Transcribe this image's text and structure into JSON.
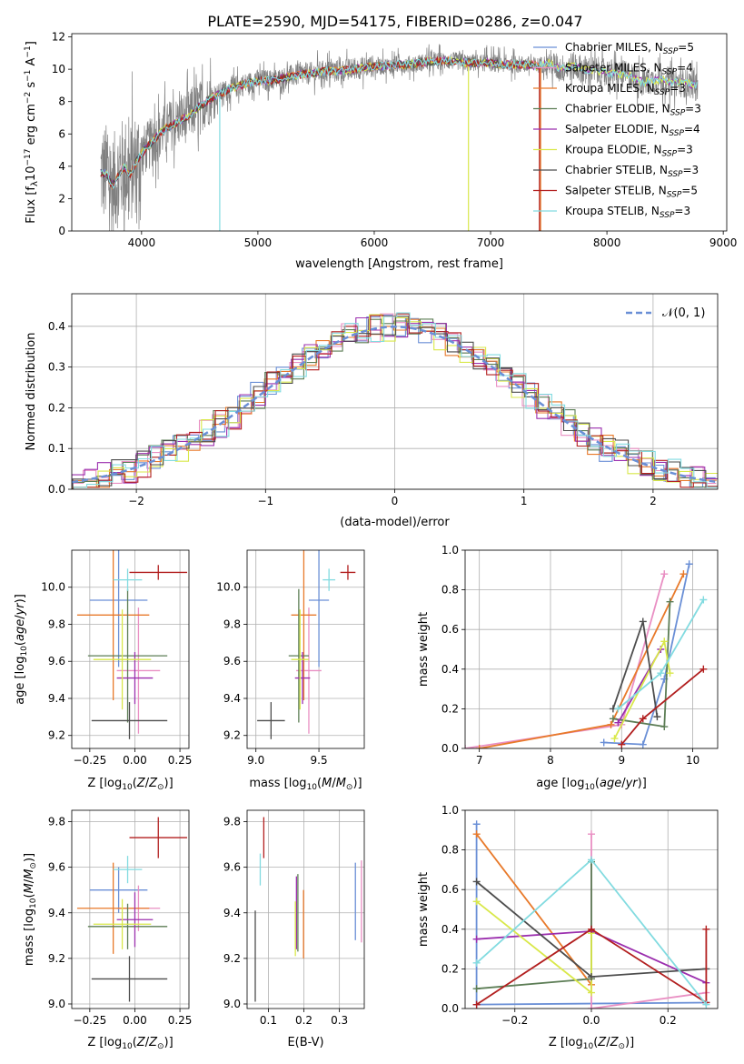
{
  "figure_title": "PLATE=2590, MJD=54175, FIBERID=0286, z=0.047",
  "colors": {
    "Chabrier MILES": "#6a8fd6",
    "Salpeter MILES": "#e98fc3",
    "Kroupa MILES": "#e8792a",
    "Chabrier ELODIE": "#5c7d55",
    "Salpeter ELODIE": "#9b2fae",
    "Kroupa ELODIE": "#d9e84a",
    "Chabrier STELIB": "#4d4d4d",
    "Salpeter STELIB": "#b21f1f",
    "Kroupa STELIB": "#82dbe0",
    "data": "#808080",
    "gaussian": "#6a8fd6"
  },
  "chart_data": [
    {
      "id": "spectrum",
      "type": "line",
      "title": "PLATE=2590, MJD=54175, FIBERID=0286, z=0.047",
      "xlabel": "wavelength [Angstrom, rest frame]",
      "ylabel": "Flux [f_λ 10^-17 erg cm^-2 s^-1 A^-1]",
      "xlim": [
        3400,
        9030
      ],
      "ylim": [
        0,
        12.2
      ],
      "xticks": [
        4000,
        5000,
        6000,
        7000,
        8000,
        9000
      ],
      "yticks": [
        0,
        2,
        4,
        6,
        8,
        10,
        12
      ],
      "grid": false,
      "legend_position": "right",
      "legend": [
        "Chabrier MILES, N_SSP=5",
        "Salpeter MILES, N_SSP=4",
        "Kroupa MILES, N_SSP=3",
        "Chabrier ELODIE, N_SSP=3",
        "Salpeter ELODIE, N_SSP=4",
        "Kroupa ELODIE, N_SSP=3",
        "Chabrier STELIB, N_SSP=3",
        "Salpeter STELIB, N_SSP=5",
        "Kroupa STELIB, N_SSP=3"
      ],
      "data_range": [
        3650,
        8780
      ],
      "model_continuum": {
        "x": [
          3650,
          3700,
          3750,
          3800,
          3850,
          3900,
          3950,
          4000,
          4100,
          4200,
          4300,
          4400,
          4500,
          4600,
          4700,
          4800,
          4900,
          5000,
          5100,
          5200,
          5300,
          5400,
          5500,
          5600,
          5700,
          5800,
          5900,
          6000,
          6100,
          6200,
          6300,
          6400,
          6500,
          6600,
          6700,
          6800,
          6900,
          7000,
          7100,
          7200,
          7300,
          7400,
          7500,
          7600,
          7700,
          7800,
          7900,
          8000,
          8100,
          8200,
          8300,
          8400,
          8500,
          8600,
          8700,
          8780
        ],
        "y": [
          3.6,
          3.5,
          2.8,
          3.4,
          4.0,
          3.5,
          4.2,
          4.8,
          5.6,
          6.3,
          6.7,
          7.1,
          7.7,
          8.2,
          8.6,
          8.9,
          9.1,
          9.3,
          9.3,
          9.4,
          9.6,
          9.7,
          9.8,
          9.9,
          9.9,
          10.0,
          10.1,
          10.2,
          10.2,
          10.3,
          10.3,
          10.4,
          10.5,
          10.5,
          10.5,
          10.4,
          10.4,
          10.4,
          10.3,
          10.3,
          10.3,
          10.2,
          10.4,
          10.0,
          10.2,
          10.0,
          9.9,
          9.8,
          9.7,
          9.6,
          9.2,
          9.3,
          9.3,
          9.2,
          9.1,
          9.0
        ]
      }
    },
    {
      "id": "residuals",
      "type": "bar",
      "xlabel": "(data-model)/error",
      "ylabel": "Normed distribution",
      "xlim": [
        -2.5,
        2.5
      ],
      "ylim": [
        0,
        0.48
      ],
      "xticks": [
        -2,
        -1,
        0,
        1,
        2
      ],
      "yticks": [
        0.0,
        0.1,
        0.2,
        0.3,
        0.4
      ],
      "grid": true,
      "legend_position": "top-right",
      "legend": [
        "𝒩(0, 1)"
      ],
      "bin_width": 0.1
    },
    {
      "id": "age_vs_Z",
      "type": "scatter",
      "xlabel": "Z [log10(Z/Z⊙)]",
      "ylabel": "age  [log10(age/yr)]",
      "xlim": [
        -0.35,
        0.3
      ],
      "ylim": [
        9.13,
        10.2
      ],
      "xticks": [
        -0.25,
        0.0,
        0.25
      ],
      "yticks": [
        9.2,
        9.4,
        9.6,
        9.8,
        10.0
      ],
      "grid": true,
      "series": [
        {
          "name": "Chabrier MILES",
          "x": -0.09,
          "xerr": 0.16,
          "y": 9.93,
          "yerr": 0.36
        },
        {
          "name": "Salpeter MILES",
          "x": 0.02,
          "xerr": 0.12,
          "y": 9.55,
          "yerr": 0.34
        },
        {
          "name": "Kroupa MILES",
          "x": -0.12,
          "xerr": 0.2,
          "y": 9.85,
          "yerr": 0.46
        },
        {
          "name": "Chabrier ELODIE",
          "x": -0.04,
          "xerr": 0.22,
          "y": 9.63,
          "yerr": 0.36
        },
        {
          "name": "Salpeter ELODIE",
          "x": 0.0,
          "xerr": 0.1,
          "y": 9.51,
          "yerr": 0.14
        },
        {
          "name": "Kroupa ELODIE",
          "x": -0.07,
          "xerr": 0.16,
          "y": 9.61,
          "yerr": 0.27
        },
        {
          "name": "Chabrier STELIB",
          "x": -0.03,
          "xerr": 0.21,
          "y": 9.28,
          "yerr": 0.1
        },
        {
          "name": "Salpeter STELIB",
          "x": 0.13,
          "xerr": 0.16,
          "y": 10.08,
          "yerr": 0.04
        },
        {
          "name": "Kroupa STELIB",
          "x": -0.04,
          "xerr": 0.08,
          "y": 10.04,
          "yerr": 0.06
        }
      ]
    },
    {
      "id": "age_vs_mass",
      "type": "scatter",
      "xlabel": "mass [log10(M/M⊙)]",
      "ylabel": "",
      "xlim": [
        8.93,
        9.86
      ],
      "ylim": [
        9.13,
        10.2
      ],
      "xticks": [
        9.0,
        9.5
      ],
      "yticks": [
        9.2,
        9.4,
        9.6,
        9.8,
        10.0
      ],
      "grid": true,
      "series": [
        {
          "name": "Chabrier MILES",
          "x": 9.5,
          "xerr": 0.08,
          "y": 9.93,
          "yerr": 0.36
        },
        {
          "name": "Salpeter MILES",
          "x": 9.42,
          "xerr": 0.1,
          "y": 9.55,
          "yerr": 0.34
        },
        {
          "name": "Kroupa MILES",
          "x": 9.38,
          "xerr": 0.1,
          "y": 9.85,
          "yerr": 0.46
        },
        {
          "name": "Chabrier ELODIE",
          "x": 9.34,
          "xerr": 0.08,
          "y": 9.63,
          "yerr": 0.36
        },
        {
          "name": "Salpeter ELODIE",
          "x": 9.37,
          "xerr": 0.06,
          "y": 9.51,
          "yerr": 0.14
        },
        {
          "name": "Kroupa ELODIE",
          "x": 9.35,
          "xerr": 0.07,
          "y": 9.61,
          "yerr": 0.27
        },
        {
          "name": "Chabrier STELIB",
          "x": 9.12,
          "xerr": 0.11,
          "y": 9.28,
          "yerr": 0.1
        },
        {
          "name": "Salpeter STELIB",
          "x": 9.73,
          "xerr": 0.06,
          "y": 10.08,
          "yerr": 0.04
        },
        {
          "name": "Kroupa STELIB",
          "x": 9.58,
          "xerr": 0.05,
          "y": 10.04,
          "yerr": 0.06
        }
      ]
    },
    {
      "id": "weight_vs_age",
      "type": "line",
      "xlabel": "age  [log10(age/yr)]",
      "ylabel": "mass weight",
      "xlim": [
        6.8,
        10.35
      ],
      "ylim": [
        0,
        1.0
      ],
      "xticks": [
        7,
        8,
        9,
        10
      ],
      "yticks": [
        0.0,
        0.2,
        0.4,
        0.6,
        0.8,
        1.0
      ],
      "grid": true,
      "series": [
        {
          "name": "Chabrier MILES",
          "x": [
            8.75,
            9.3,
            9.6,
            9.95
          ],
          "y": [
            0.03,
            0.02,
            0.35,
            0.93
          ]
        },
        {
          "name": "Salpeter MILES",
          "x": [
            6.8,
            9.0,
            9.6
          ],
          "y": [
            0.0,
            0.12,
            0.88
          ]
        },
        {
          "name": "Kroupa MILES",
          "x": [
            7.0,
            8.85,
            9.87
          ],
          "y": [
            0.0,
            0.12,
            0.88
          ]
        },
        {
          "name": "Chabrier ELODIE",
          "x": [
            8.88,
            9.6,
            9.68
          ],
          "y": [
            0.15,
            0.11,
            0.74
          ]
        },
        {
          "name": "Salpeter ELODIE",
          "x": [
            8.95,
            9.55
          ],
          "y": [
            0.13,
            0.5
          ]
        },
        {
          "name": "Kroupa ELODIE",
          "x": [
            8.9,
            9.6,
            9.68
          ],
          "y": [
            0.05,
            0.54,
            0.38
          ]
        },
        {
          "name": "Chabrier STELIB",
          "x": [
            8.88,
            9.3,
            9.5
          ],
          "y": [
            0.2,
            0.64,
            0.16
          ]
        },
        {
          "name": "Salpeter STELIB",
          "x": [
            9.0,
            9.3,
            10.15
          ],
          "y": [
            0.02,
            0.15,
            0.4
          ]
        },
        {
          "name": "Kroupa STELIB",
          "x": [
            8.95,
            9.55,
            10.15
          ],
          "y": [
            0.2,
            0.38,
            0.75
          ]
        }
      ]
    },
    {
      "id": "mass_vs_Z",
      "type": "scatter",
      "xlabel": "Z [log10(Z/Z⊙)]",
      "ylabel": "mass [log10(M/M⊙)]",
      "xlim": [
        -0.35,
        0.3
      ],
      "ylim": [
        8.98,
        9.85
      ],
      "xticks": [
        -0.25,
        0.0,
        0.25
      ],
      "yticks": [
        9.0,
        9.2,
        9.4,
        9.6,
        9.8
      ],
      "grid": true,
      "series": [
        {
          "name": "Chabrier MILES",
          "x": -0.09,
          "xerr": 0.16,
          "y": 9.5,
          "yerr": 0.1
        },
        {
          "name": "Salpeter MILES",
          "x": 0.02,
          "xerr": 0.12,
          "y": 9.42,
          "yerr": 0.1
        },
        {
          "name": "Kroupa MILES",
          "x": -0.12,
          "xerr": 0.2,
          "y": 9.42,
          "yerr": 0.2
        },
        {
          "name": "Chabrier ELODIE",
          "x": -0.04,
          "xerr": 0.22,
          "y": 9.34,
          "yerr": 0.1
        },
        {
          "name": "Salpeter ELODIE",
          "x": 0.0,
          "xerr": 0.1,
          "y": 9.37,
          "yerr": 0.12
        },
        {
          "name": "Kroupa ELODIE",
          "x": -0.07,
          "xerr": 0.16,
          "y": 9.35,
          "yerr": 0.11
        },
        {
          "name": "Chabrier STELIB",
          "x": -0.03,
          "xerr": 0.21,
          "y": 9.11,
          "yerr": 0.1
        },
        {
          "name": "Salpeter STELIB",
          "x": 0.13,
          "xerr": 0.16,
          "y": 9.73,
          "yerr": 0.09
        },
        {
          "name": "Kroupa STELIB",
          "x": -0.04,
          "xerr": 0.08,
          "y": 9.59,
          "yerr": 0.06
        }
      ]
    },
    {
      "id": "mass_vs_ebv",
      "type": "scatter",
      "xlabel": "E(B-V)",
      "ylabel": "",
      "xlim": [
        0.04,
        0.37
      ],
      "ylim": [
        8.98,
        9.85
      ],
      "xticks": [
        0.1,
        0.2,
        0.3
      ],
      "yticks": [
        9.0,
        9.2,
        9.4,
        9.6,
        9.8
      ],
      "grid": true,
      "series": [
        {
          "name": "Chabrier MILES",
          "x": 0.345,
          "y": 9.45,
          "yerr": 0.17
        },
        {
          "name": "Salpeter MILES",
          "x": 0.362,
          "y": 9.45,
          "yerr": 0.18
        },
        {
          "name": "Kroupa MILES",
          "x": 0.199,
          "y": 9.35,
          "yerr": 0.15
        },
        {
          "name": "Chabrier ELODIE",
          "x": 0.183,
          "y": 9.4,
          "yerr": 0.17
        },
        {
          "name": "Salpeter ELODIE",
          "x": 0.179,
          "y": 9.4,
          "yerr": 0.16
        },
        {
          "name": "Kroupa ELODIE",
          "x": 0.176,
          "y": 9.33,
          "yerr": 0.12
        },
        {
          "name": "Chabrier STELIB",
          "x": 0.063,
          "y": 9.21,
          "yerr": 0.2
        },
        {
          "name": "Salpeter STELIB",
          "x": 0.087,
          "y": 9.73,
          "yerr": 0.09
        },
        {
          "name": "Kroupa STELIB",
          "x": 0.077,
          "y": 9.59,
          "yerr": 0.07
        }
      ]
    },
    {
      "id": "weight_vs_Z",
      "type": "line",
      "xlabel": "Z [log10(Z/Z⊙)]",
      "ylabel": "mass weight",
      "xlim": [
        -0.33,
        0.33
      ],
      "ylim": [
        0,
        1.0
      ],
      "xticks": [
        -0.2,
        0.0,
        0.2
      ],
      "yticks": [
        0.0,
        0.2,
        0.4,
        0.6,
        0.8,
        1.0
      ],
      "grid": true,
      "series": [
        {
          "name": "Chabrier MILES",
          "x": [
            -0.3,
            -0.3,
            0.3
          ],
          "y": [
            0.93,
            0.02,
            0.03
          ]
        },
        {
          "name": "Salpeter MILES",
          "x": [
            0.0,
            0.0,
            0.3
          ],
          "y": [
            0.88,
            0.0,
            0.08
          ]
        },
        {
          "name": "Kroupa MILES",
          "x": [
            -0.3,
            0.0
          ],
          "y": [
            0.88,
            0.12
          ]
        },
        {
          "name": "Chabrier ELODIE",
          "x": [
            -0.3,
            0.0,
            0.0
          ],
          "y": [
            0.1,
            0.15,
            0.74
          ]
        },
        {
          "name": "Salpeter ELODIE",
          "x": [
            -0.3,
            0.0,
            0.3
          ],
          "y": [
            0.35,
            0.39,
            0.13
          ]
        },
        {
          "name": "Kroupa ELODIE",
          "x": [
            -0.3,
            0.0,
            0.0
          ],
          "y": [
            0.54,
            0.08,
            0.38
          ]
        },
        {
          "name": "Chabrier STELIB",
          "x": [
            -0.3,
            0.0,
            0.3
          ],
          "y": [
            0.64,
            0.16,
            0.2
          ]
        },
        {
          "name": "Salpeter STELIB",
          "x": [
            -0.3,
            0.0,
            0.3,
            0.3
          ],
          "y": [
            0.02,
            0.4,
            0.03,
            0.4
          ]
        },
        {
          "name": "Kroupa STELIB",
          "x": [
            -0.3,
            0.0,
            0.3
          ],
          "y": [
            0.23,
            0.75,
            0.02
          ]
        }
      ]
    }
  ]
}
